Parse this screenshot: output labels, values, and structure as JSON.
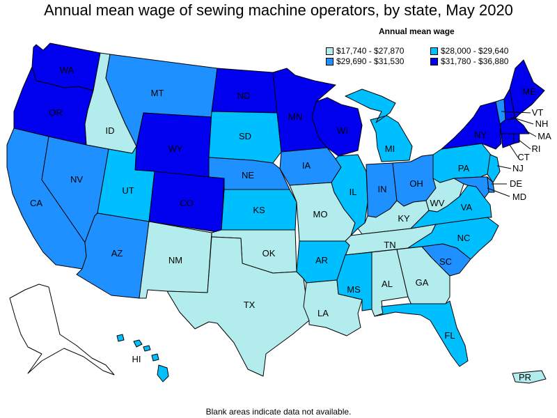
{
  "title": "Annual mean wage of sewing machine operators, by state, May 2020",
  "legend": {
    "title": "Annual mean wage",
    "items": [
      {
        "label": "$17,740 - $27,870",
        "color": "#b3ecec"
      },
      {
        "label": "$28,000 - $29,640",
        "color": "#00bfff"
      },
      {
        "label": "$29,690 - $31,530",
        "color": "#1e90ff"
      },
      {
        "label": "$31,780 - $36,880",
        "color": "#0000ee"
      }
    ]
  },
  "note": "Blank areas indicate data not available.",
  "states": [
    {
      "abbr": "WA",
      "tier": 3
    },
    {
      "abbr": "OR",
      "tier": 3
    },
    {
      "abbr": "CA",
      "tier": 2
    },
    {
      "abbr": "ID",
      "tier": 0
    },
    {
      "abbr": "NV",
      "tier": 2
    },
    {
      "abbr": "MT",
      "tier": 2
    },
    {
      "abbr": "WY",
      "tier": 3
    },
    {
      "abbr": "UT",
      "tier": 1
    },
    {
      "abbr": "AZ",
      "tier": 2
    },
    {
      "abbr": "CO",
      "tier": 3
    },
    {
      "abbr": "NM",
      "tier": 0
    },
    {
      "abbr": "ND",
      "tier": 3
    },
    {
      "abbr": "SD",
      "tier": 1
    },
    {
      "abbr": "NE",
      "tier": 2
    },
    {
      "abbr": "KS",
      "tier": 1
    },
    {
      "abbr": "OK",
      "tier": 0
    },
    {
      "abbr": "TX",
      "tier": 0
    },
    {
      "abbr": "MN",
      "tier": 3
    },
    {
      "abbr": "IA",
      "tier": 2
    },
    {
      "abbr": "MO",
      "tier": 0
    },
    {
      "abbr": "AR",
      "tier": 1
    },
    {
      "abbr": "LA",
      "tier": 0
    },
    {
      "abbr": "WI",
      "tier": 3
    },
    {
      "abbr": "IL",
      "tier": 1
    },
    {
      "abbr": "MI",
      "tier": 1
    },
    {
      "abbr": "IN",
      "tier": 2
    },
    {
      "abbr": "OH",
      "tier": 2
    },
    {
      "abbr": "KY",
      "tier": 0
    },
    {
      "abbr": "TN",
      "tier": 0
    },
    {
      "abbr": "MS",
      "tier": 1
    },
    {
      "abbr": "AL",
      "tier": 0
    },
    {
      "abbr": "GA",
      "tier": 0
    },
    {
      "abbr": "FL",
      "tier": 1
    },
    {
      "abbr": "SC",
      "tier": 2
    },
    {
      "abbr": "NC",
      "tier": 1
    },
    {
      "abbr": "VA",
      "tier": 1
    },
    {
      "abbr": "WV",
      "tier": 0
    },
    {
      "abbr": "PA",
      "tier": 1
    },
    {
      "abbr": "NY",
      "tier": 3
    },
    {
      "abbr": "ME",
      "tier": 3
    },
    {
      "abbr": "VT",
      "tier": 2
    },
    {
      "abbr": "NH",
      "tier": 3
    },
    {
      "abbr": "MA",
      "tier": 3
    },
    {
      "abbr": "RI",
      "tier": 3
    },
    {
      "abbr": "CT",
      "tier": 3
    },
    {
      "abbr": "NJ",
      "tier": 1
    },
    {
      "abbr": "DE",
      "tier": 2
    },
    {
      "abbr": "MD",
      "tier": 2
    },
    {
      "abbr": "AK",
      "tier": null
    },
    {
      "abbr": "HI",
      "tier": 1
    },
    {
      "abbr": "PR",
      "tier": 0
    }
  ]
}
